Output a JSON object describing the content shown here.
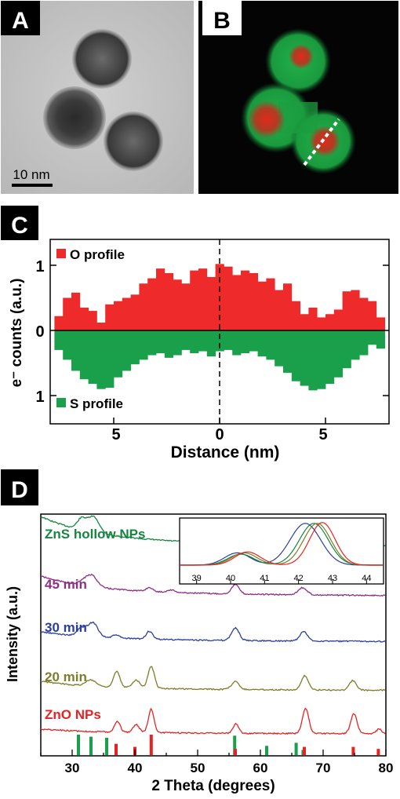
{
  "panels": {
    "a": {
      "letter": "A",
      "scale_bar": "10 nm"
    },
    "b": {
      "letter": "B"
    },
    "c": {
      "letter": "C"
    },
    "d": {
      "letter": "D"
    }
  },
  "colors": {
    "oxygen": "#ee2a2a",
    "sulfur": "#1aa04a"
  },
  "chart_data": [
    {
      "type": "bar",
      "panel": "C",
      "xlabel": "Distance (nm)",
      "ylabel": "e⁻ counts (a.u.)",
      "xlim": [
        -8,
        8
      ],
      "xticks": [
        5,
        0,
        5
      ],
      "yticks_top": [
        "1",
        "0"
      ],
      "ytick_bottom": "1",
      "grid": false,
      "legend_position": "inside-top-left and inside-bottom-left",
      "series": [
        {
          "name": "O profile",
          "direction": "up",
          "x": [
            -7.6,
            -7.2,
            -6.8,
            -6.4,
            -6.0,
            -5.6,
            -5.2,
            -4.8,
            -4.4,
            -4.0,
            -3.6,
            -3.2,
            -2.8,
            -2.4,
            -2.0,
            -1.6,
            -1.2,
            -0.8,
            -0.4,
            0.0,
            0.4,
            0.8,
            1.2,
            1.6,
            2.0,
            2.4,
            2.8,
            3.2,
            3.6,
            4.0,
            4.4,
            4.8,
            5.2,
            5.6,
            6.0,
            6.4,
            6.8,
            7.2,
            7.6
          ],
          "values": [
            0.22,
            0.5,
            0.58,
            0.35,
            0.3,
            0.12,
            0.4,
            0.45,
            0.5,
            0.55,
            0.72,
            0.8,
            0.95,
            0.88,
            0.78,
            0.72,
            0.92,
            0.95,
            0.82,
            1.02,
            0.98,
            0.85,
            0.92,
            0.88,
            0.75,
            0.8,
            0.62,
            0.72,
            0.45,
            0.25,
            0.35,
            0.2,
            0.25,
            0.32,
            0.6,
            0.62,
            0.5,
            0.45,
            0.2
          ]
        },
        {
          "name": "S profile",
          "direction": "down",
          "x": [
            -7.6,
            -7.2,
            -6.8,
            -6.4,
            -6.0,
            -5.6,
            -5.2,
            -4.8,
            -4.4,
            -4.0,
            -3.6,
            -3.2,
            -2.8,
            -2.4,
            -2.0,
            -1.6,
            -1.2,
            -0.8,
            -0.4,
            0.0,
            0.4,
            0.8,
            1.2,
            1.6,
            2.0,
            2.4,
            2.8,
            3.2,
            3.6,
            4.0,
            4.4,
            4.8,
            5.2,
            5.6,
            6.0,
            6.4,
            6.8,
            7.2,
            7.6
          ],
          "values": [
            0.3,
            0.45,
            0.62,
            0.75,
            0.82,
            0.9,
            0.88,
            0.72,
            0.62,
            0.52,
            0.45,
            0.38,
            0.35,
            0.42,
            0.38,
            0.3,
            0.35,
            0.32,
            0.4,
            0.32,
            0.3,
            0.38,
            0.35,
            0.32,
            0.4,
            0.45,
            0.55,
            0.65,
            0.78,
            0.85,
            0.92,
            0.9,
            0.82,
            0.72,
            0.58,
            0.45,
            0.38,
            0.22,
            0.28
          ]
        }
      ]
    },
    {
      "type": "line",
      "panel": "D",
      "xlabel": "2 Theta (degrees)",
      "ylabel": "Intensity (a.u.)",
      "xlim": [
        25,
        80
      ],
      "xticks": [
        30,
        40,
        50,
        60,
        70,
        80
      ],
      "grid": false,
      "series": [
        {
          "name": "ZnS hollow NPs",
          "color": "#15853f"
        },
        {
          "name": "45 min",
          "color": "#8e2e86"
        },
        {
          "name": "30 min",
          "color": "#2a3ea0"
        },
        {
          "name": "20 min",
          "color": "#7d7d2a"
        },
        {
          "name": "ZnO NPs",
          "color": "#e52323"
        }
      ],
      "reference_lines": [
        {
          "set": "ZnS",
          "color": "#1aa04a",
          "x": [
            31.0,
            33.0,
            35.5,
            55.9,
            61.0,
            65.7,
            66.8
          ],
          "heights": [
            1.0,
            0.9,
            0.85,
            0.95,
            0.45,
            0.6,
            0.25
          ]
        },
        {
          "set": "ZnO",
          "color": "#e52323",
          "x": [
            37.0,
            40.0,
            42.6,
            56.0,
            67.0,
            74.8,
            78.8
          ],
          "heights": [
            0.55,
            0.4,
            1.0,
            0.3,
            0.4,
            0.4,
            0.3
          ]
        }
      ],
      "inset": {
        "xlim": [
          38.5,
          44.5
        ],
        "xticks": [
          39,
          40,
          41,
          42,
          43,
          44
        ],
        "series": [
          {
            "color": "#2a3ea0",
            "peaks": [
              [
                40.2,
                0.28,
                0.75
              ],
              [
                42.2,
                0.95,
                0.9
              ]
            ]
          },
          {
            "color": "#15853f",
            "peaks": [
              [
                40.3,
                0.25,
                0.75
              ],
              [
                42.45,
                0.95,
                0.85
              ]
            ]
          },
          {
            "color": "#7d7d2a",
            "peaks": [
              [
                40.4,
                0.28,
                0.75
              ],
              [
                42.55,
                0.95,
                0.8
              ]
            ]
          },
          {
            "color": "#e52323",
            "peaks": [
              [
                40.5,
                0.3,
                0.75
              ],
              [
                42.7,
                0.97,
                0.75
              ]
            ]
          }
        ]
      }
    }
  ]
}
